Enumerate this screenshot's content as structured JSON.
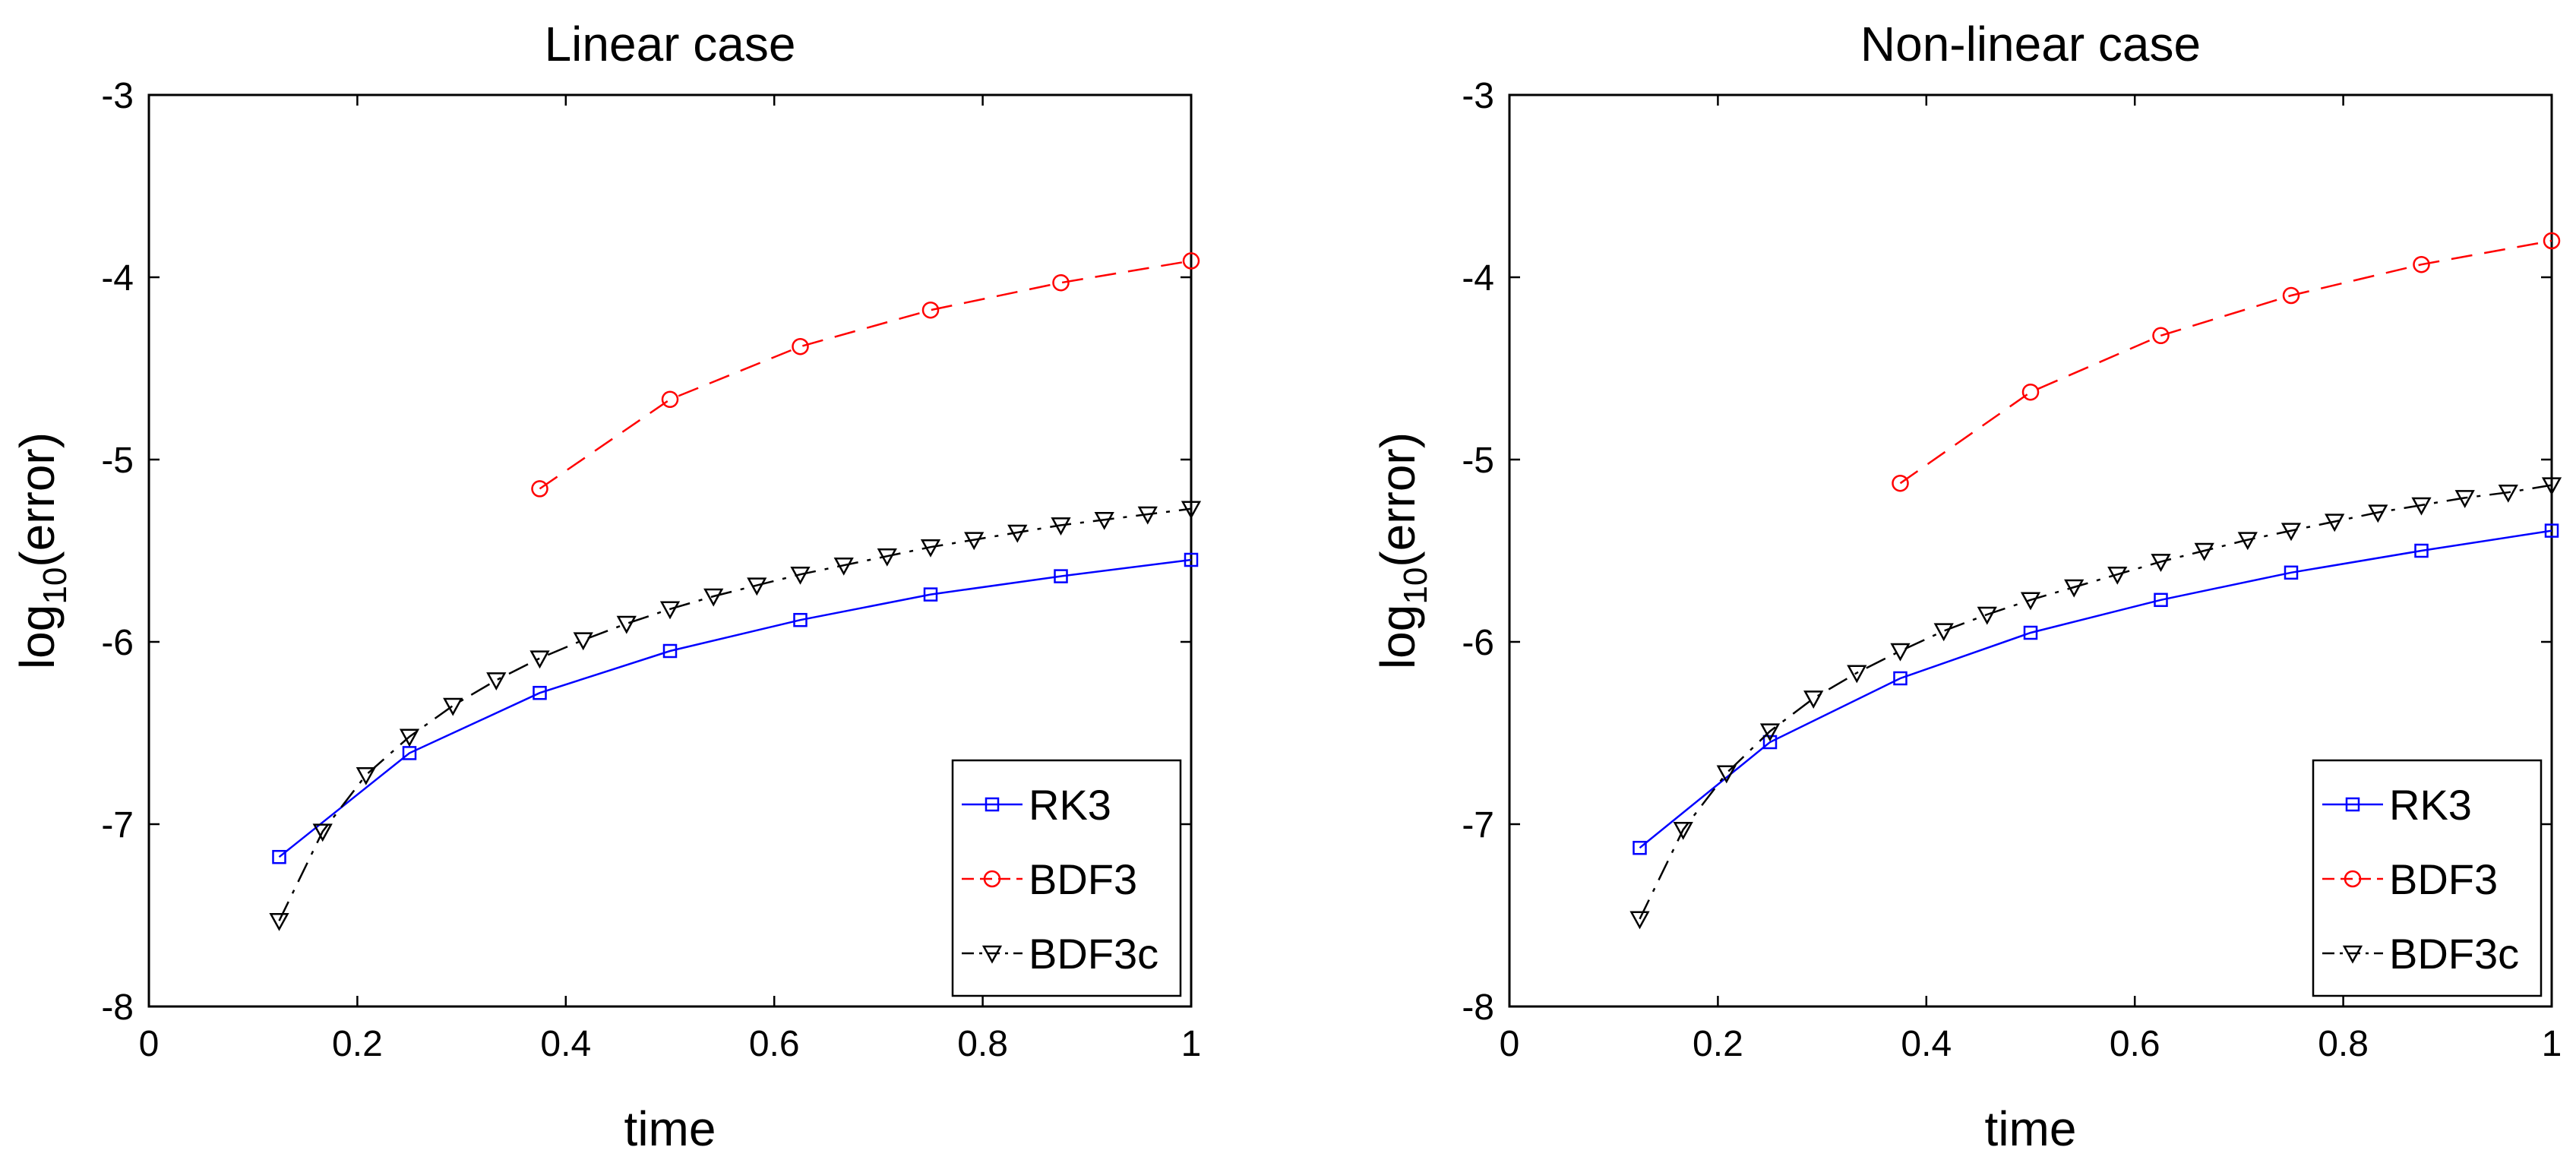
{
  "chart_data": [
    {
      "type": "line",
      "title": "Linear case",
      "xlabel": "time",
      "ylabel_main": "log",
      "ylabel_sub": "10",
      "ylabel_rest": "(error)",
      "xlim": [
        0,
        1
      ],
      "ylim": [
        -8,
        -3
      ],
      "xticks": [
        0,
        0.2,
        0.4,
        0.6,
        0.8,
        1
      ],
      "xtick_labels": [
        "0",
        "0.2",
        "0.4",
        "0.6",
        "0.8",
        "1"
      ],
      "yticks": [
        -3,
        -4,
        -5,
        -6,
        -7,
        -8
      ],
      "ytick_labels": [
        "-3",
        "-4",
        "-5",
        "-6",
        "-7",
        "-8"
      ],
      "grid": false,
      "legend_position": "bottom-right",
      "series": [
        {
          "name": "RK3",
          "color": "#0000ff",
          "line_style": "solid",
          "marker": "square",
          "x": [
            0.125,
            0.25,
            0.375,
            0.5,
            0.625,
            0.75,
            0.875,
            1.0
          ],
          "y": [
            -7.18,
            -6.61,
            -6.28,
            -6.05,
            -5.88,
            -5.74,
            -5.64,
            -5.55
          ]
        },
        {
          "name": "BDF3",
          "color": "#ff0000",
          "line_style": "dashed",
          "marker": "circle",
          "x": [
            0.375,
            0.5,
            0.625,
            0.75,
            0.875,
            1.0
          ],
          "y": [
            -5.16,
            -4.67,
            -4.38,
            -4.18,
            -4.03,
            -3.91
          ]
        },
        {
          "name": "BDF3c",
          "color": "#000000",
          "line_style": "dashdot",
          "marker": "triangle-down",
          "x": [
            0.125,
            0.1667,
            0.2083,
            0.25,
            0.2917,
            0.3333,
            0.375,
            0.4167,
            0.4583,
            0.5,
            0.5417,
            0.5833,
            0.625,
            0.6667,
            0.7083,
            0.75,
            0.7917,
            0.8333,
            0.875,
            0.9167,
            0.9583,
            1.0
          ],
          "y": [
            -7.53,
            -7.04,
            -6.73,
            -6.52,
            -6.35,
            -6.21,
            -6.09,
            -5.99,
            -5.9,
            -5.82,
            -5.75,
            -5.69,
            -5.63,
            -5.58,
            -5.53,
            -5.48,
            -5.44,
            -5.4,
            -5.36,
            -5.33,
            -5.3,
            -5.27
          ]
        }
      ]
    },
    {
      "type": "line",
      "title": "Non-linear case",
      "xlabel": "time",
      "ylabel_main": "log",
      "ylabel_sub": "10",
      "ylabel_rest": "(error)",
      "xlim": [
        0,
        1
      ],
      "ylim": [
        -8,
        -3
      ],
      "xticks": [
        0,
        0.2,
        0.4,
        0.6,
        0.8,
        1
      ],
      "xtick_labels": [
        "0",
        "0.2",
        "0.4",
        "0.6",
        "0.8",
        "1"
      ],
      "yticks": [
        -3,
        -4,
        -5,
        -6,
        -7,
        -8
      ],
      "ytick_labels": [
        "-3",
        "-4",
        "-5",
        "-6",
        "-7",
        "-8"
      ],
      "grid": false,
      "legend_position": "bottom-right",
      "series": [
        {
          "name": "RK3",
          "color": "#0000ff",
          "line_style": "solid",
          "marker": "square",
          "x": [
            0.125,
            0.25,
            0.375,
            0.5,
            0.625,
            0.75,
            0.875,
            1.0
          ],
          "y": [
            -7.13,
            -6.55,
            -6.2,
            -5.95,
            -5.77,
            -5.62,
            -5.5,
            -5.39
          ]
        },
        {
          "name": "BDF3",
          "color": "#ff0000",
          "line_style": "dashed",
          "marker": "circle",
          "x": [
            0.375,
            0.5,
            0.625,
            0.75,
            0.875,
            1.0
          ],
          "y": [
            -5.13,
            -4.63,
            -4.32,
            -4.1,
            -3.93,
            -3.8
          ]
        },
        {
          "name": "BDF3c",
          "color": "#000000",
          "line_style": "dashdot",
          "marker": "triangle-down",
          "x": [
            0.125,
            0.1667,
            0.2083,
            0.25,
            0.2917,
            0.3333,
            0.375,
            0.4167,
            0.4583,
            0.5,
            0.5417,
            0.5833,
            0.625,
            0.6667,
            0.7083,
            0.75,
            0.7917,
            0.8333,
            0.875,
            0.9167,
            0.9583,
            1.0
          ],
          "y": [
            -7.52,
            -7.03,
            -6.72,
            -6.49,
            -6.31,
            -6.17,
            -6.05,
            -5.94,
            -5.85,
            -5.77,
            -5.7,
            -5.63,
            -5.56,
            -5.5,
            -5.44,
            -5.39,
            -5.34,
            -5.29,
            -5.25,
            -5.21,
            -5.18,
            -5.14
          ]
        }
      ]
    }
  ]
}
